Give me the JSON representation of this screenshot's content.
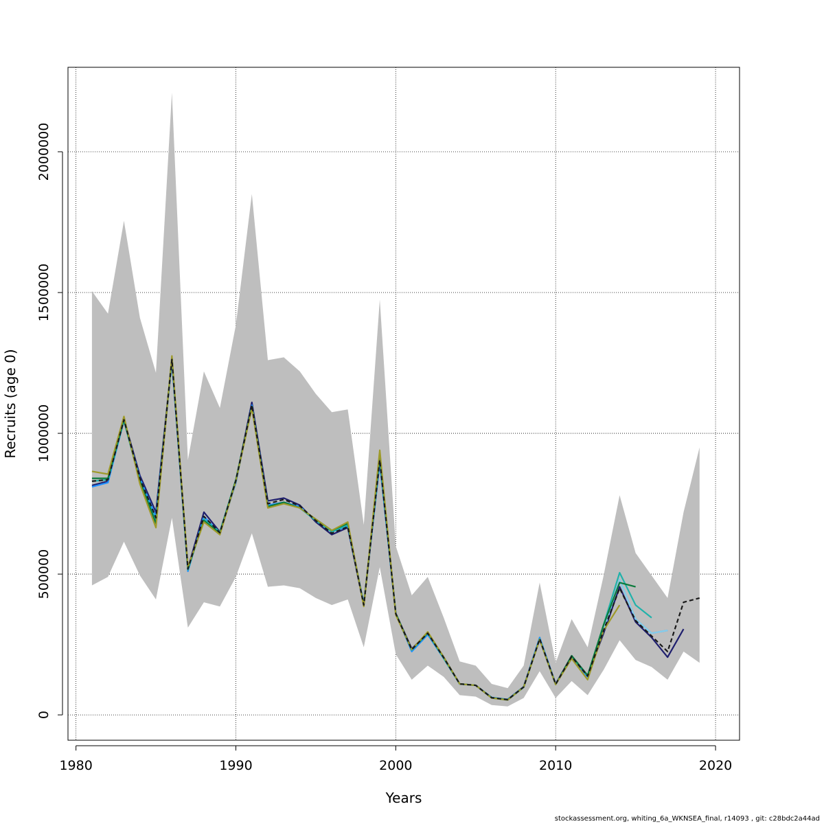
{
  "chart_data": {
    "type": "line",
    "xlabel": "Years",
    "ylabel": "Recruits (age 0)",
    "xlim": [
      1979.5,
      2021.5
    ],
    "ylim": [
      -90000,
      2300000
    ],
    "x_ticks": [
      1980,
      1990,
      2000,
      2010,
      2020
    ],
    "y_ticks": [
      0,
      500000,
      1000000,
      1500000,
      2000000
    ],
    "grid": true,
    "confidence_band": {
      "color": "#bebebe",
      "x": [
        1981,
        1982,
        1983,
        1984,
        1985,
        1986,
        1987,
        1988,
        1989,
        1990,
        1991,
        1992,
        1993,
        1994,
        1995,
        1996,
        1997,
        1998,
        1999,
        2000,
        2001,
        2002,
        2003,
        2004,
        2005,
        2006,
        2007,
        2008,
        2009,
        2010,
        2011,
        2012,
        2013,
        2014,
        2015,
        2016,
        2017,
        2018,
        2019
      ],
      "upper": [
        1505000,
        1425000,
        1755000,
        1410000,
        1215000,
        2210000,
        905000,
        1220000,
        1090000,
        1385000,
        1850000,
        1260000,
        1270000,
        1220000,
        1140000,
        1075000,
        1085000,
        675000,
        1475000,
        600000,
        425000,
        490000,
        345000,
        190000,
        175000,
        110000,
        95000,
        175000,
        470000,
        185000,
        340000,
        240000,
        495000,
        780000,
        575000,
        495000,
        415000,
        720000,
        950000
      ],
      "lower": [
        460000,
        490000,
        615000,
        495000,
        410000,
        700000,
        310000,
        400000,
        385000,
        490000,
        645000,
        455000,
        460000,
        450000,
        415000,
        390000,
        410000,
        240000,
        525000,
        215000,
        125000,
        175000,
        135000,
        70000,
        65000,
        35000,
        30000,
        60000,
        155000,
        60000,
        120000,
        70000,
        160000,
        265000,
        195000,
        170000,
        125000,
        225000,
        185000
      ]
    },
    "series": [
      {
        "color": "#1f1f6e",
        "dash": false,
        "x": [
          1981,
          1982,
          1983,
          1984,
          1985,
          1986,
          1987,
          1988,
          1989,
          1990,
          1991,
          1992,
          1993,
          1994,
          1995,
          1996,
          1997,
          1998,
          1999,
          2000,
          2001,
          2002,
          2003,
          2004,
          2005,
          2006,
          2007,
          2008,
          2009,
          2010,
          2011,
          2012,
          2013,
          2014,
          2015,
          2016,
          2017,
          2018
        ],
        "values": [
          815000,
          830000,
          1050000,
          850000,
          720000,
          1260000,
          520000,
          720000,
          650000,
          830000,
          1110000,
          760000,
          770000,
          745000,
          685000,
          640000,
          665000,
          390000,
          900000,
          360000,
          235000,
          290000,
          205000,
          110000,
          105000,
          60000,
          55000,
          100000,
          270000,
          110000,
          210000,
          140000,
          290000,
          455000,
          330000,
          275000,
          205000,
          305000
        ]
      },
      {
        "color": "#1e90ff",
        "dash": false,
        "x": [
          1981,
          1982,
          1983,
          1984,
          1985,
          1986,
          1987,
          1988,
          1989,
          1990,
          1991,
          1992,
          1993,
          1994,
          1995,
          1996,
          1997,
          1998,
          1999,
          2000,
          2001,
          2002,
          2003,
          2004,
          2005,
          2006,
          2007,
          2008,
          2009,
          2010,
          2011,
          2012,
          2013,
          2014,
          2015,
          2016,
          2017
        ],
        "values": [
          810000,
          825000,
          1045000,
          840000,
          705000,
          1255000,
          510000,
          705000,
          645000,
          825000,
          1100000,
          745000,
          755000,
          740000,
          690000,
          650000,
          670000,
          395000,
          895000,
          360000,
          225000,
          285000,
          200000,
          110000,
          105000,
          62000,
          55000,
          100000,
          275000,
          110000,
          205000,
          135000,
          300000,
          480000,
          340000,
          290000,
          300000
        ]
      },
      {
        "color": "#87ceeb",
        "dash": false,
        "x": [
          2013,
          2014,
          2015,
          2016,
          2017
        ],
        "values": [
          300000,
          480000,
          340000,
          290000,
          300000
        ]
      },
      {
        "color": "#20b2aa",
        "dash": false,
        "x": [
          1981,
          1982,
          1983,
          1984,
          1985,
          1986,
          1987,
          1988,
          1989,
          1990,
          1991,
          1992,
          1993,
          1994,
          1995,
          1996,
          1997,
          1998,
          1999,
          2000,
          2001,
          2002,
          2003,
          2004,
          2005,
          2006,
          2007,
          2008,
          2009,
          2010,
          2011,
          2012,
          2013,
          2014,
          2015,
          2016
        ],
        "values": [
          830000,
          835000,
          1045000,
          830000,
          690000,
          1265000,
          515000,
          695000,
          650000,
          835000,
          1095000,
          740000,
          755000,
          735000,
          690000,
          650000,
          675000,
          390000,
          915000,
          360000,
          230000,
          290000,
          200000,
          110000,
          105000,
          60000,
          53000,
          98000,
          270000,
          108000,
          205000,
          140000,
          320000,
          505000,
          390000,
          345000
        ]
      },
      {
        "color": "#0b7a3b",
        "dash": false,
        "x": [
          1981,
          1982,
          1983,
          1984,
          1985,
          1986,
          1987,
          1988,
          1989,
          1990,
          1991,
          1992,
          1993,
          1994,
          1995,
          1996,
          1997,
          1998,
          1999,
          2000,
          2001,
          2002,
          2003,
          2004,
          2005,
          2006,
          2007,
          2008,
          2009,
          2010,
          2011,
          2012,
          2013,
          2014,
          2015
        ],
        "values": [
          840000,
          840000,
          1050000,
          830000,
          680000,
          1270000,
          520000,
          690000,
          645000,
          835000,
          1095000,
          740000,
          755000,
          735000,
          695000,
          655000,
          680000,
          390000,
          920000,
          360000,
          232000,
          292000,
          205000,
          110000,
          105000,
          61000,
          54000,
          99000,
          268000,
          108000,
          210000,
          140000,
          320000,
          470000,
          455000
        ]
      },
      {
        "color": "#9e9a2a",
        "dash": false,
        "x": [
          1981,
          1982,
          1983,
          1984,
          1985,
          1986,
          1987,
          1988,
          1989,
          1990,
          1991,
          1992,
          1993,
          1994,
          1995,
          1996,
          1997,
          1998,
          1999,
          2000,
          2001,
          2002,
          2003,
          2004,
          2005,
          2006,
          2007,
          2008,
          2009,
          2010,
          2011,
          2012,
          2013,
          2014
        ],
        "values": [
          865000,
          855000,
          1060000,
          820000,
          665000,
          1275000,
          525000,
          685000,
          640000,
          830000,
          1090000,
          735000,
          750000,
          735000,
          695000,
          655000,
          685000,
          385000,
          940000,
          355000,
          232000,
          295000,
          205000,
          110000,
          105000,
          60000,
          53000,
          99000,
          268000,
          108000,
          200000,
          125000,
          300000,
          390000
        ]
      },
      {
        "color": "#1a1a1a",
        "dash": true,
        "x": [
          1981,
          1982,
          1983,
          1984,
          1985,
          1986,
          1987,
          1988,
          1989,
          1990,
          1991,
          1992,
          1993,
          1994,
          1995,
          1996,
          1997,
          1998,
          1999,
          2000,
          2001,
          2002,
          2003,
          2004,
          2005,
          2006,
          2007,
          2008,
          2009,
          2010,
          2011,
          2012,
          2013,
          2014,
          2015,
          2016,
          2017,
          2018,
          2019
        ],
        "values": [
          830000,
          835000,
          1048000,
          840000,
          700000,
          1262000,
          518000,
          705000,
          647000,
          832000,
          1100000,
          750000,
          765000,
          742000,
          690000,
          645000,
          668000,
          390000,
          905000,
          360000,
          232000,
          290000,
          203000,
          110000,
          105000,
          61000,
          54000,
          99000,
          270000,
          109000,
          207000,
          138000,
          300000,
          450000,
          335000,
          280000,
          225000,
          400000,
          415000
        ]
      }
    ]
  },
  "footer_text": "stockassessment.org, whiting_6a_WKNSEA_final, r14093 , git: c28bdc2a44ad"
}
